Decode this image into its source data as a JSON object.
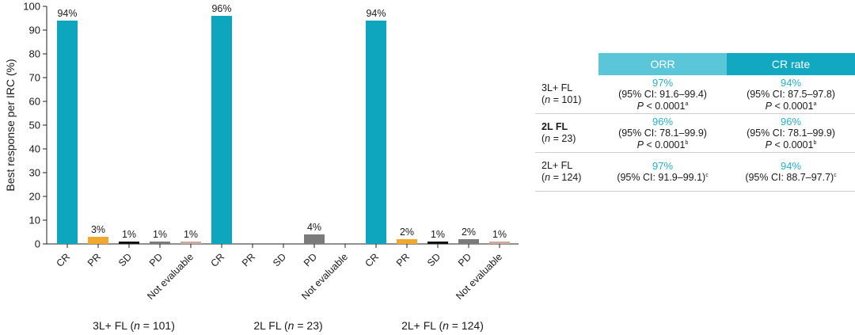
{
  "colors": {
    "CR": "#0ea5bf",
    "PR": "#f0a830",
    "SD": "#111111",
    "PD": "#7b7b7b",
    "Not evaluable": "#c9a9a0",
    "table_head_orr": "#5cc6d9",
    "table_head_cr": "#12a8c2",
    "table_pct": "#29aeca"
  },
  "chart_data": {
    "type": "bar",
    "ylabel": "Best response per IRC (%)",
    "ylim": [
      0,
      100
    ],
    "yticks": [
      0,
      10,
      20,
      30,
      40,
      50,
      60,
      70,
      80,
      90,
      100
    ],
    "groups": [
      {
        "label": "3L+ FL (n = 101)",
        "label_parts": [
          "3L+ FL (",
          "n",
          " = 101)"
        ],
        "bars": [
          {
            "category": "CR",
            "value": 94,
            "label": "94%"
          },
          {
            "category": "PR",
            "value": 3,
            "label": "3%"
          },
          {
            "category": "SD",
            "value": 1,
            "label": "1%"
          },
          {
            "category": "PD",
            "value": 1,
            "label": "1%"
          },
          {
            "category": "Not evaluable",
            "value": 1,
            "label": "1%"
          }
        ]
      },
      {
        "label": "2L FL (n = 23)",
        "label_parts": [
          "2L FL (",
          "n",
          " = 23)"
        ],
        "bars": [
          {
            "category": "CR",
            "value": 96,
            "label": "96%"
          },
          {
            "category": "PR",
            "value": 0,
            "label": ""
          },
          {
            "category": "SD",
            "value": 0,
            "label": ""
          },
          {
            "category": "PD",
            "value": 4,
            "label": "4%"
          },
          {
            "category": "Not evaluable",
            "value": 0,
            "label": ""
          }
        ]
      },
      {
        "label": "2L+ FL (n = 124)",
        "label_parts": [
          "2L+ FL (",
          "n",
          " = 124)"
        ],
        "bars": [
          {
            "category": "CR",
            "value": 94,
            "label": "94%"
          },
          {
            "category": "PR",
            "value": 2,
            "label": "2%"
          },
          {
            "category": "SD",
            "value": 1,
            "label": "1%"
          },
          {
            "category": "PD",
            "value": 2,
            "label": "2%"
          },
          {
            "category": "Not evaluable",
            "value": 1,
            "label": "1%"
          }
        ]
      }
    ]
  },
  "table": {
    "headers": [
      "ORR",
      "CR rate"
    ],
    "rows": [
      {
        "label_line1": "3L+ FL",
        "label_n": "n",
        "label_line2": " = 101)",
        "orr": {
          "pct": "97%",
          "ci": "(95% CI: 91.6–99.4)",
          "p": " < 0.0001",
          "sup": "a"
        },
        "cr": {
          "pct": "94%",
          "ci": "(95% CI: 87.5–97.8)",
          "p": " < 0.0001",
          "sup": "a"
        }
      },
      {
        "label_line1": "2L FL",
        "label_n": "n",
        "label_line2": " = 23)",
        "orr": {
          "pct": "96%",
          "ci": "(95% CI: 78.1–99.9)",
          "p": " < 0.0001",
          "sup": "b"
        },
        "cr": {
          "pct": "96%",
          "ci": "(95% CI: 78.1–99.9)",
          "p": " < 0.0001",
          "sup": "b"
        }
      },
      {
        "label_line1": "2L+ FL",
        "label_n": "n",
        "label_line2": " = 124)",
        "orr": {
          "pct": "97%",
          "ci": "(95% CI: 91.9–99.1)",
          "p": "",
          "sup": "c"
        },
        "cr": {
          "pct": "94%",
          "ci": "(95% CI: 88.7–97.7)",
          "p": "",
          "sup": "c"
        }
      }
    ],
    "p_symbol": "P"
  }
}
